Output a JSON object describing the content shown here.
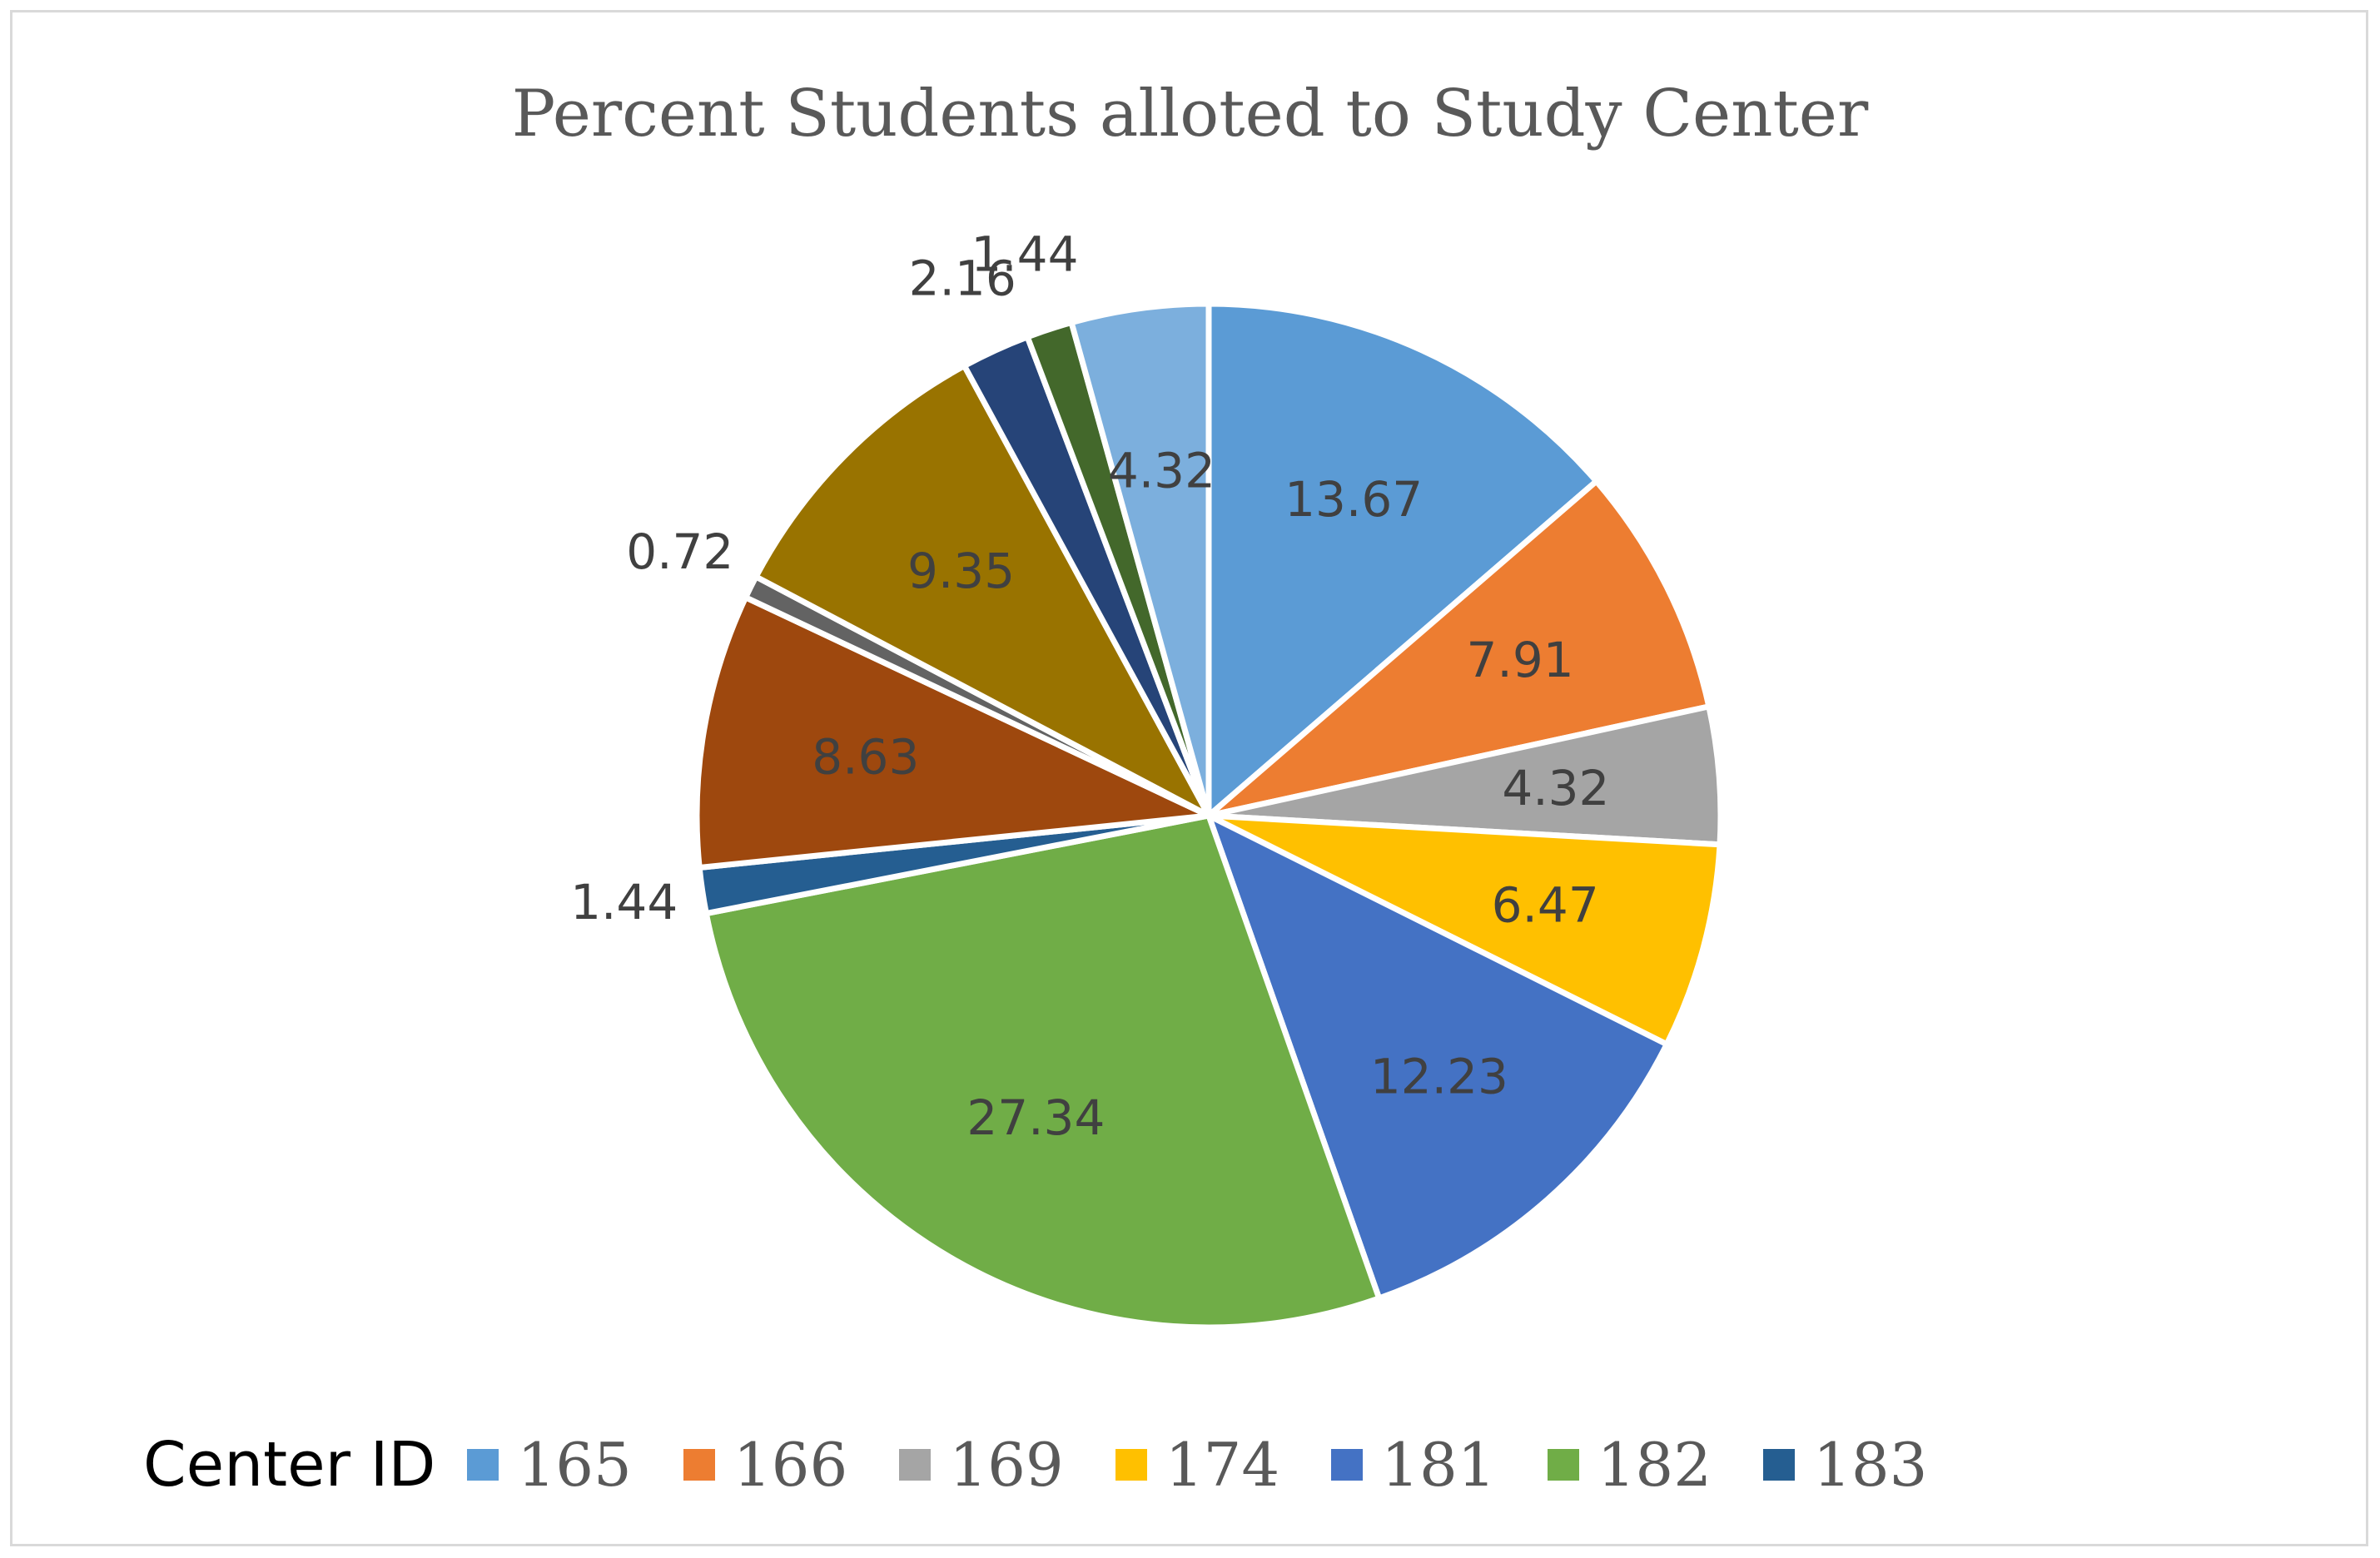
{
  "chart_data": {
    "type": "pie",
    "title": "Percent Students alloted to Study Center",
    "legend": {
      "title": "Center ID",
      "position": "bottom",
      "visible_entries": [
        "165",
        "166",
        "169",
        "174",
        "181",
        "182",
        "183"
      ]
    },
    "start_angle_deg": 0,
    "direction": "clockwise",
    "slices": [
      {
        "value": 13.67,
        "label": "13.67",
        "color": "#5b9bd5",
        "label_placement": "inside"
      },
      {
        "value": 7.91,
        "label": "7.91",
        "color": "#ed7d31",
        "label_placement": "inside"
      },
      {
        "value": 4.32,
        "label": "4.32",
        "color": "#a5a5a5",
        "label_placement": "inside"
      },
      {
        "value": 6.47,
        "label": "6.47",
        "color": "#ffc000",
        "label_placement": "inside"
      },
      {
        "value": 12.23,
        "label": "12.23",
        "color": "#4472c4",
        "label_placement": "inside"
      },
      {
        "value": 27.34,
        "label": "27.34",
        "color": "#70ad47",
        "label_placement": "inside"
      },
      {
        "value": 1.44,
        "label": "1.44",
        "color": "#255e91",
        "label_placement": "outside"
      },
      {
        "value": 8.63,
        "label": "8.63",
        "color": "#9e480e",
        "label_placement": "inside"
      },
      {
        "value": 0.72,
        "label": "0.72",
        "color": "#636363",
        "label_placement": "outside"
      },
      {
        "value": 9.35,
        "label": "9.35",
        "color": "#997300",
        "label_placement": "inside"
      },
      {
        "value": 2.16,
        "label": "2.16",
        "color": "#264478",
        "label_placement": "outside"
      },
      {
        "value": 1.44,
        "label": "1.44",
        "color": "#43682b",
        "label_placement": "outside"
      },
      {
        "value": 4.32,
        "label": "4.32",
        "color": "#7cafdd",
        "label_placement": "inside"
      }
    ]
  }
}
